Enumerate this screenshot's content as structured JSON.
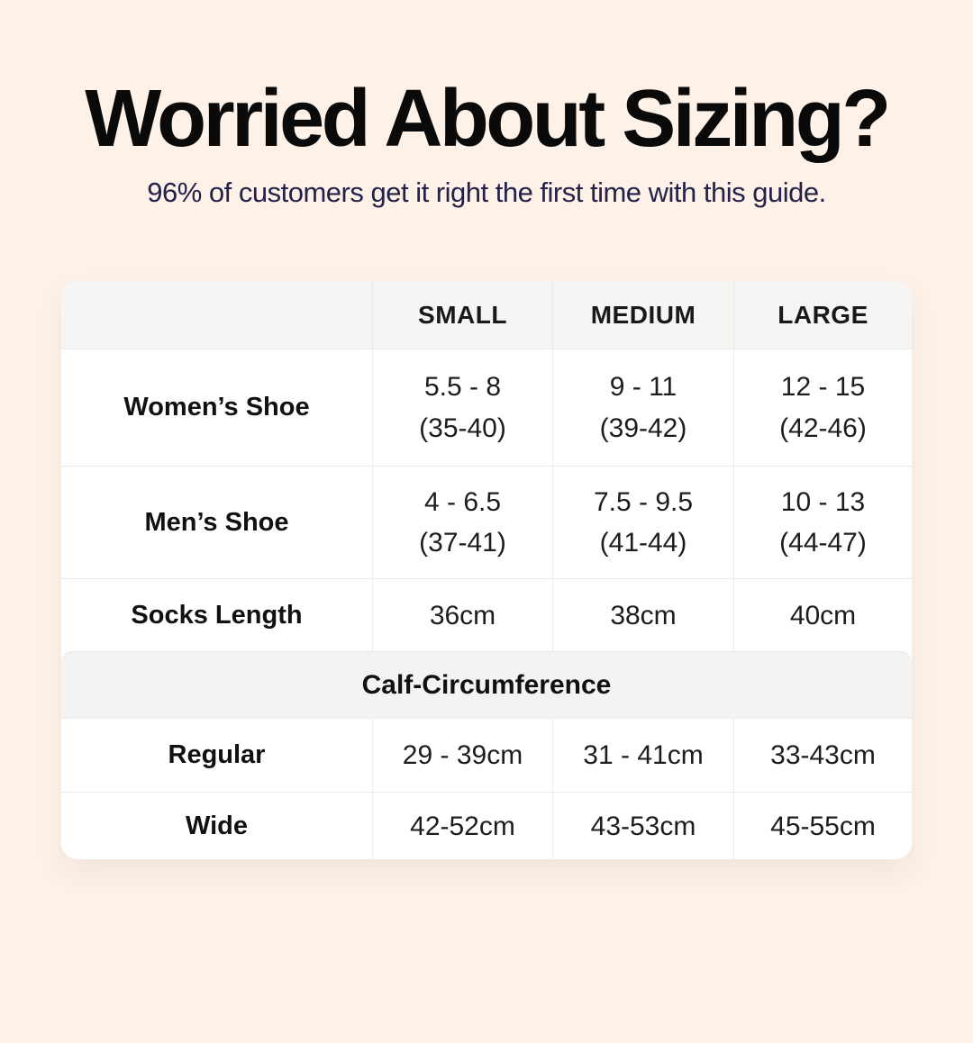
{
  "page": {
    "title": "Worried About Sizing?",
    "subtitle": "96% of customers get it right the first time with this guide."
  },
  "colors": {
    "page_background": "#fdf1e8",
    "card_background": "#ffffff",
    "header_band_gray": "#f6f5f3",
    "section_band_gray": "#f4f3f1",
    "subtitle_navy": "#25224a",
    "title_black": "#0a0a0a",
    "border_gray": "#ecebe8"
  },
  "table": {
    "columns": [
      "",
      "SMALL",
      "MEDIUM",
      "LARGE"
    ],
    "rows": [
      {
        "label": "Women’s Shoe",
        "values": [
          {
            "line1": "5.5 - 8",
            "line2": "(35-40)"
          },
          {
            "line1": "9 - 11",
            "line2": "(39-42)"
          },
          {
            "line1": "12 - 15",
            "line2": "(42-46)"
          }
        ]
      },
      {
        "label": "Men’s Shoe",
        "values": [
          {
            "line1": "4 - 6.5",
            "line2": "(37-41)"
          },
          {
            "line1": "7.5 - 9.5",
            "line2": "(41-44)"
          },
          {
            "line1": "10 - 13",
            "line2": "(44-47)"
          }
        ]
      },
      {
        "label": "Socks Length",
        "values": [
          {
            "line1": "36cm",
            "line2": ""
          },
          {
            "line1": "38cm",
            "line2": ""
          },
          {
            "line1": "40cm",
            "line2": ""
          }
        ]
      }
    ],
    "section_header": "Calf-Circumference",
    "section_rows": [
      {
        "label": "Regular",
        "values": [
          {
            "line1": "29 - 39cm",
            "line2": ""
          },
          {
            "line1": "31 - 41cm",
            "line2": ""
          },
          {
            "line1": "33-43cm",
            "line2": ""
          }
        ]
      },
      {
        "label": "Wide",
        "values": [
          {
            "line1": "42-52cm",
            "line2": ""
          },
          {
            "line1": "43-53cm",
            "line2": ""
          },
          {
            "line1": "45-55cm",
            "line2": ""
          }
        ]
      }
    ]
  }
}
